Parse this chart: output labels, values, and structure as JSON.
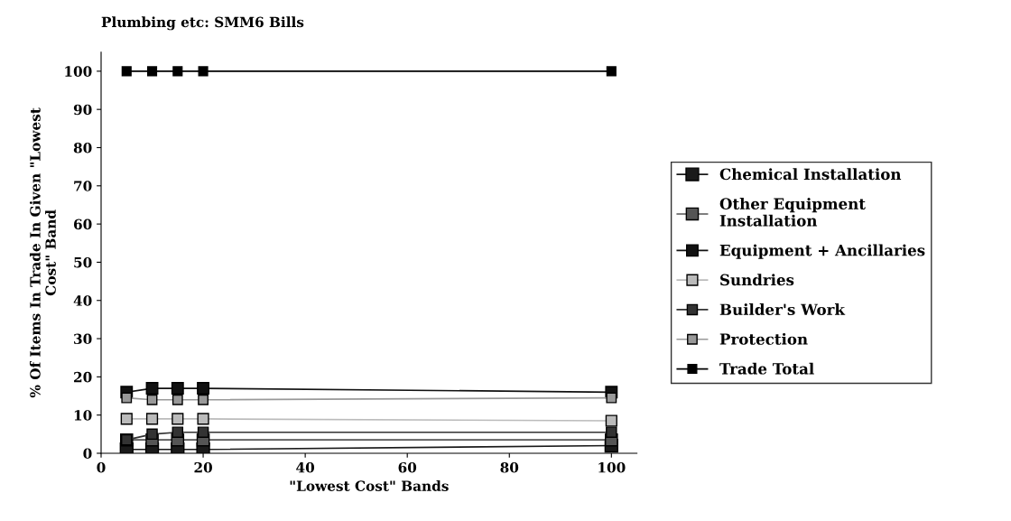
{
  "chart_data": {
    "type": "line",
    "title": "Plumbing etc: SMM6 Bills",
    "xlabel": "\"Lowest Cost\" Bands",
    "ylabel": "% Of Items In Trade In Given \"Lowest\nCost\" Band",
    "x": [
      5,
      10,
      15,
      20,
      100
    ],
    "series": [
      {
        "name": "Chemical Installation",
        "color": "#1a1a1a",
        "values": [
          1,
          1,
          1,
          1,
          2
        ]
      },
      {
        "name": "Other Equipment\nInstallation",
        "color": "#555555",
        "values": [
          3.5,
          3.5,
          3.5,
          3.5,
          3.5
        ]
      },
      {
        "name": "Equipment + Ancillaries",
        "color": "#111111",
        "values": [
          16,
          17,
          17,
          17,
          16
        ]
      },
      {
        "name": "Sundries",
        "color": "#bbbbbb",
        "values": [
          9,
          9,
          9,
          9,
          8.5
        ]
      },
      {
        "name": "Builder's Work",
        "color": "#333333",
        "values": [
          3.5,
          5,
          5.5,
          5.5,
          5.5
        ]
      },
      {
        "name": "Protection",
        "color": "#999999",
        "values": [
          14.5,
          14,
          14,
          14,
          14.5
        ]
      },
      {
        "name": "Trade Total",
        "color": "#000000",
        "values": [
          100,
          100,
          100,
          100,
          100
        ]
      }
    ],
    "xlim": [
      0,
      105
    ],
    "xticks": [
      0,
      20,
      40,
      60,
      80,
      100
    ],
    "ylim": [
      0,
      105
    ],
    "yticks": [
      0,
      10,
      20,
      30,
      40,
      50,
      60,
      70,
      80,
      90,
      100
    ],
    "grid": false,
    "legend": "right",
    "marker": "square",
    "line_style": "solid"
  }
}
